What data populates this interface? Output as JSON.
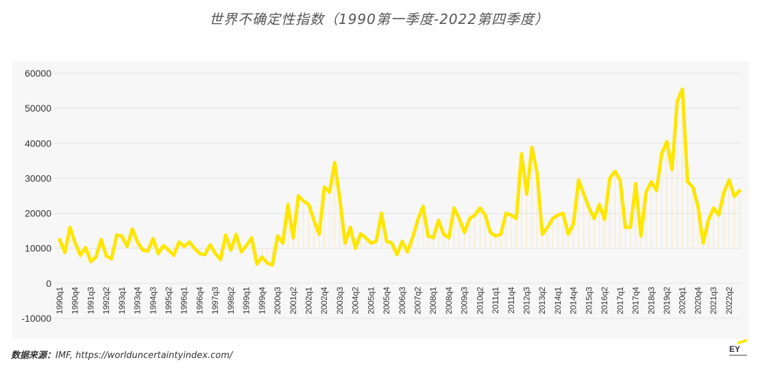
{
  "title": "世界不确定性指数（1990第一季度-2022第四季度）",
  "source_label": "数据来源：",
  "source_text": "IMF, https://worlduncertaintyindex.com/",
  "logo_text": "EY",
  "colors": {
    "line": "#ffe600",
    "panel": "#f7f7f7",
    "grid": "#e3e3e3"
  },
  "chart_data": {
    "type": "line",
    "title": "世界不确定性指数（1990第一季度-2022第四季度）",
    "xlabel": "",
    "ylabel": "",
    "ylim": [
      -10000,
      60000
    ],
    "yticks": [
      60000,
      50000,
      40000,
      30000,
      20000,
      10000,
      0,
      -10000
    ],
    "grid": true,
    "legend": "none",
    "x_tick_labels": [
      "1990q1",
      "1990q4",
      "1991q3",
      "1992q2",
      "1993q1",
      "1993q4",
      "1994q3",
      "1995q2",
      "1996q1",
      "1996q4",
      "1997q3",
      "1998q2",
      "1999q1",
      "1999q4",
      "2000q3",
      "2001q2",
      "2002q1",
      "2002q4",
      "2003q3",
      "2004q2",
      "2005q1",
      "2005q4",
      "2006q3",
      "2007q2",
      "2008q1",
      "2008q4",
      "2009q3",
      "2010q2",
      "2011q1",
      "2011q4",
      "2012q3",
      "2013q2",
      "2014q1",
      "2014q4",
      "2015q3",
      "2016q2",
      "2017q1",
      "2017q4",
      "2018q3",
      "2019q2",
      "2020q1",
      "2020q4",
      "2021q3",
      "2022q2"
    ],
    "series": [
      {
        "values": [
          12500,
          8800,
          16000,
          11500,
          8000,
          10200,
          6200,
          7500,
          12500,
          7800,
          7000,
          13800,
          13500,
          10500,
          15500,
          11800,
          9500,
          9200,
          12800,
          8500,
          10800,
          9500,
          8000,
          11800,
          10500,
          11800,
          10000,
          8500,
          8200,
          11000,
          8500,
          6800,
          13800,
          9500,
          14000,
          9000,
          10800,
          13000,
          5500,
          7500,
          5800,
          5200,
          13500,
          11500,
          22500,
          13000,
          25000,
          23500,
          22500,
          18000,
          14000,
          27500,
          26000,
          34500,
          24000,
          11500,
          16000,
          10000,
          14200,
          13000,
          11500,
          12000,
          20000,
          12000,
          11500,
          8200,
          12000,
          9000,
          13000,
          18000,
          22000,
          13500,
          13000,
          18000,
          14000,
          13000,
          21500,
          18500,
          14500,
          18500,
          19500,
          21500,
          19500,
          14500,
          13500,
          14000,
          20000,
          19500,
          18500,
          37000,
          25500,
          38800,
          31500,
          14000,
          16000,
          18500,
          19500,
          20000,
          14000,
          17000,
          29500,
          25500,
          21500,
          18500,
          22500,
          18200,
          30000,
          32000,
          29500,
          16000,
          16000,
          28500,
          13500,
          26000,
          29000,
          26500,
          37000,
          40500,
          32500,
          52000,
          55500,
          29000,
          27500,
          22000,
          11500,
          18000,
          21500,
          19500,
          26000,
          29500,
          24800,
          26500
        ]
      }
    ]
  }
}
